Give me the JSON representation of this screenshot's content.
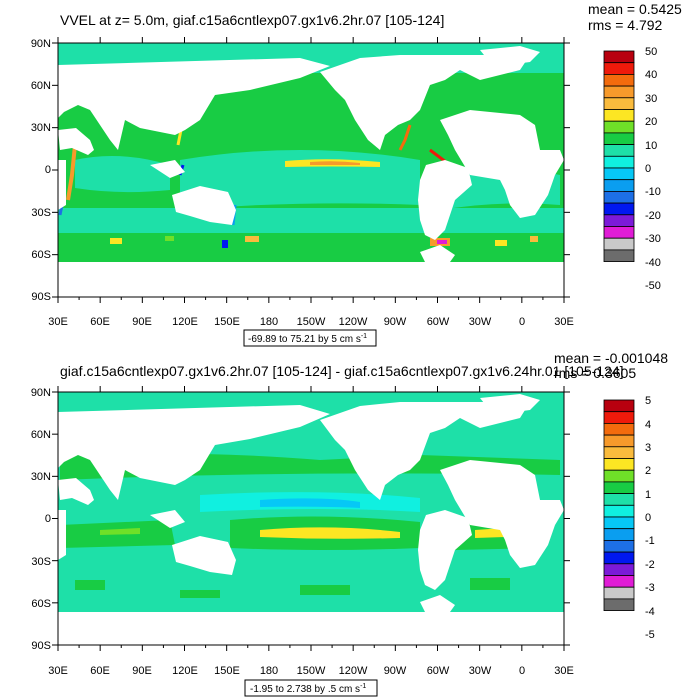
{
  "panels": [
    {
      "title": "VVEL at z=   5.0m, giaf.c15a6cntlexp07.gx1v6.2hr.07 [105-124]",
      "stats": {
        "mean": "mean = 0.5425",
        "rms": "rms = 4.792"
      },
      "range_label": "-69.89 to 75.21 by 5 cm s",
      "range_superscript": "-1",
      "colorbar_labels": [
        "50",
        "40",
        "30",
        "20",
        "10",
        "0",
        "-10",
        "-20",
        "-30",
        "-40",
        "-50"
      ]
    },
    {
      "title": "giaf.c15a6cntlexp07.gx1v6.2hr.07 [105-124] - giaf.c15a6cntlexp07.gx1v6.24hr.01 [105-124]",
      "stats": {
        "mean": "mean = -0.001048",
        "rms": "rms = 0.3605"
      },
      "range_label": "-1.95 to 2.738 by .5 cm s",
      "range_superscript": "-1",
      "colorbar_labels": [
        "5",
        "4",
        "3",
        "2",
        "1",
        "0",
        "-1",
        "-2",
        "-3",
        "-4",
        "-5"
      ]
    }
  ],
  "axes": {
    "lat_labels": [
      "90N",
      "60N",
      "30N",
      "0",
      "30S",
      "60S",
      "90S"
    ],
    "lon_labels": [
      "30E",
      "60E",
      "90E",
      "120E",
      "150E",
      "180",
      "150W",
      "120W",
      "90W",
      "60W",
      "30W",
      "0",
      "30E"
    ]
  },
  "colors": {
    "colorbar": [
      "#b8000f",
      "#ee1a0b",
      "#f36b0d",
      "#f79a2b",
      "#fabb3d",
      "#fce623",
      "#6fe028",
      "#18cc44",
      "#1ee0a8",
      "#10f0e0",
      "#06c8f6",
      "#0a9ef0",
      "#1d6fe6",
      "#0018f0",
      "#7c1ad8",
      "#e01cd6",
      "#c9c9c9",
      "#6c6c6c"
    ],
    "land": "#ffffff",
    "ocean_base": "#18cc44",
    "ocean_alt": "#1ee0a8"
  },
  "chart_data": [
    {
      "type": "heatmap",
      "title": "VVEL at z=   5.0m, giaf.c15a6cntlexp07.gx1v6.2hr.07 [105-124]",
      "xlabel": "",
      "ylabel": "",
      "xlim": [
        30,
        390
      ],
      "ylim": [
        -90,
        90
      ],
      "x_ticks": [
        "30E",
        "60E",
        "90E",
        "120E",
        "150E",
        "180",
        "150W",
        "120W",
        "90W",
        "60W",
        "30W",
        "0",
        "30E"
      ],
      "y_ticks": [
        "90N",
        "60N",
        "30N",
        "0",
        "30S",
        "60S",
        "90S"
      ],
      "contour_levels": [
        -50,
        -40,
        -30,
        -20,
        -10,
        0,
        10,
        20,
        30,
        40,
        50
      ],
      "min": -69.89,
      "max": 75.21,
      "interval": 5,
      "units": "cm s-1",
      "mean": 0.5425,
      "rms": 4.792
    },
    {
      "type": "heatmap",
      "title": "giaf.c15a6cntlexp07.gx1v6.2hr.07 [105-124] - giaf.c15a6cntlexp07.gx1v6.24hr.01 [105-124]",
      "xlabel": "",
      "ylabel": "",
      "xlim": [
        30,
        390
      ],
      "ylim": [
        -90,
        90
      ],
      "x_ticks": [
        "30E",
        "60E",
        "90E",
        "120E",
        "150E",
        "180",
        "150W",
        "120W",
        "90W",
        "60W",
        "30W",
        "0",
        "30E"
      ],
      "y_ticks": [
        "90N",
        "60N",
        "30N",
        "0",
        "30S",
        "60S",
        "90S"
      ],
      "contour_levels": [
        -5,
        -4,
        -3,
        -2,
        -1,
        0,
        1,
        2,
        3,
        4,
        5
      ],
      "min": -1.95,
      "max": 2.738,
      "interval": 0.5,
      "units": "cm s-1",
      "mean": -0.001048,
      "rms": 0.3605
    }
  ]
}
